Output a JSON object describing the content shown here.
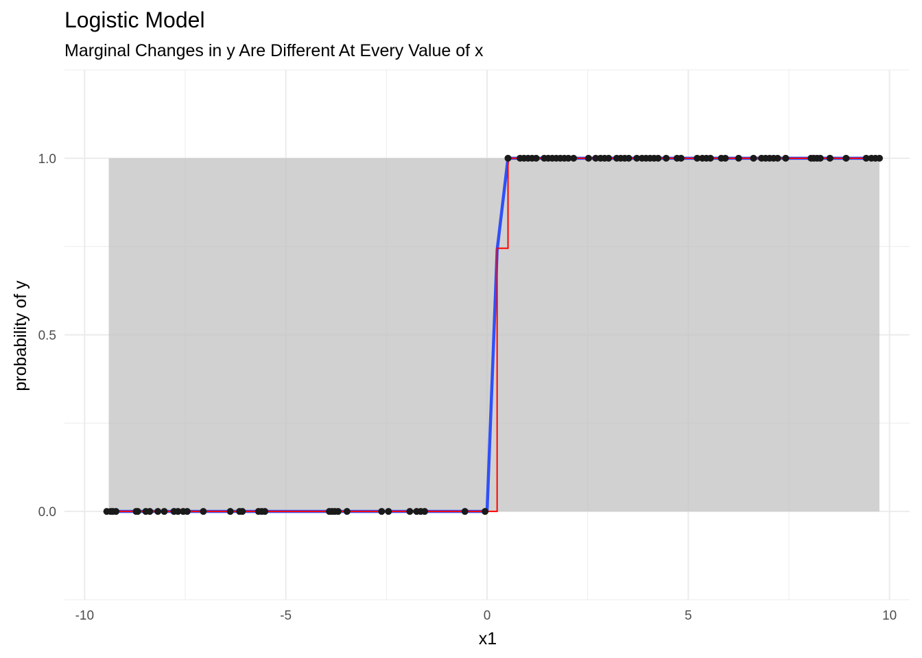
{
  "chart_data": {
    "type": "scatter",
    "title": "Logistic Model",
    "subtitle": "Marginal Changes in y Are Different At Every Value of x",
    "xlabel": "x1",
    "ylabel": "probability of y",
    "xlim": [
      -10.5,
      10.5
    ],
    "ylim": [
      -0.25,
      1.25
    ],
    "x_ticks": [
      -10,
      -5,
      0,
      5,
      10
    ],
    "x_tick_labels": [
      "-10",
      "-5",
      "0",
      "5",
      "10"
    ],
    "y_ticks": [
      0.0,
      0.5,
      1.0
    ],
    "y_tick_labels": [
      "0.0",
      "0.5",
      "1.0"
    ],
    "grid": true,
    "legend": "none",
    "colors": {
      "points": "#1a1a1a",
      "logistic_fit": "#3050f8",
      "step_fit": "#ff0000",
      "band": "#bfbfbf",
      "grid": "#ebebeb"
    },
    "band": {
      "xmin": -9.4,
      "xmax": 9.75,
      "ymin": 0,
      "ymax": 1
    },
    "points": [
      {
        "x": -9.45,
        "y": 0
      },
      {
        "x": -9.35,
        "y": 0
      },
      {
        "x": -9.3,
        "y": 0
      },
      {
        "x": -9.22,
        "y": 0
      },
      {
        "x": -8.72,
        "y": 0
      },
      {
        "x": -8.68,
        "y": 0
      },
      {
        "x": -8.48,
        "y": 0
      },
      {
        "x": -8.38,
        "y": 0
      },
      {
        "x": -8.18,
        "y": 0
      },
      {
        "x": -8.02,
        "y": 0
      },
      {
        "x": -7.78,
        "y": 0
      },
      {
        "x": -7.68,
        "y": 0
      },
      {
        "x": -7.55,
        "y": 0
      },
      {
        "x": -7.45,
        "y": 0
      },
      {
        "x": -7.05,
        "y": 0
      },
      {
        "x": -6.38,
        "y": 0
      },
      {
        "x": -6.15,
        "y": 0
      },
      {
        "x": -6.08,
        "y": 0
      },
      {
        "x": -5.68,
        "y": 0
      },
      {
        "x": -5.6,
        "y": 0
      },
      {
        "x": -5.52,
        "y": 0
      },
      {
        "x": -3.92,
        "y": 0
      },
      {
        "x": -3.85,
        "y": 0
      },
      {
        "x": -3.78,
        "y": 0
      },
      {
        "x": -3.7,
        "y": 0
      },
      {
        "x": -3.48,
        "y": 0
      },
      {
        "x": -2.62,
        "y": 0
      },
      {
        "x": -2.45,
        "y": 0
      },
      {
        "x": -1.92,
        "y": 0
      },
      {
        "x": -1.75,
        "y": 0
      },
      {
        "x": -1.65,
        "y": 0
      },
      {
        "x": -1.55,
        "y": 0
      },
      {
        "x": -0.55,
        "y": 0
      },
      {
        "x": -0.05,
        "y": 0
      },
      {
        "x": 0.52,
        "y": 1
      },
      {
        "x": 0.82,
        "y": 1
      },
      {
        "x": 0.92,
        "y": 1
      },
      {
        "x": 1.02,
        "y": 1
      },
      {
        "x": 1.12,
        "y": 1
      },
      {
        "x": 1.22,
        "y": 1
      },
      {
        "x": 1.42,
        "y": 1
      },
      {
        "x": 1.52,
        "y": 1
      },
      {
        "x": 1.62,
        "y": 1
      },
      {
        "x": 1.72,
        "y": 1
      },
      {
        "x": 1.82,
        "y": 1
      },
      {
        "x": 1.92,
        "y": 1
      },
      {
        "x": 2.02,
        "y": 1
      },
      {
        "x": 2.15,
        "y": 1
      },
      {
        "x": 2.52,
        "y": 1
      },
      {
        "x": 2.7,
        "y": 1
      },
      {
        "x": 2.82,
        "y": 1
      },
      {
        "x": 2.92,
        "y": 1
      },
      {
        "x": 3.02,
        "y": 1
      },
      {
        "x": 3.22,
        "y": 1
      },
      {
        "x": 3.32,
        "y": 1
      },
      {
        "x": 3.42,
        "y": 1
      },
      {
        "x": 3.52,
        "y": 1
      },
      {
        "x": 3.72,
        "y": 1
      },
      {
        "x": 3.85,
        "y": 1
      },
      {
        "x": 3.95,
        "y": 1
      },
      {
        "x": 4.05,
        "y": 1
      },
      {
        "x": 4.15,
        "y": 1
      },
      {
        "x": 4.25,
        "y": 1
      },
      {
        "x": 4.45,
        "y": 1
      },
      {
        "x": 4.72,
        "y": 1
      },
      {
        "x": 4.82,
        "y": 1
      },
      {
        "x": 5.22,
        "y": 1
      },
      {
        "x": 5.35,
        "y": 1
      },
      {
        "x": 5.45,
        "y": 1
      },
      {
        "x": 5.55,
        "y": 1
      },
      {
        "x": 5.82,
        "y": 1
      },
      {
        "x": 5.92,
        "y": 1
      },
      {
        "x": 6.25,
        "y": 1
      },
      {
        "x": 6.62,
        "y": 1
      },
      {
        "x": 6.82,
        "y": 1
      },
      {
        "x": 6.92,
        "y": 1
      },
      {
        "x": 7.02,
        "y": 1
      },
      {
        "x": 7.12,
        "y": 1
      },
      {
        "x": 7.22,
        "y": 1
      },
      {
        "x": 7.42,
        "y": 1
      },
      {
        "x": 8.05,
        "y": 1
      },
      {
        "x": 8.12,
        "y": 1
      },
      {
        "x": 8.2,
        "y": 1
      },
      {
        "x": 8.28,
        "y": 1
      },
      {
        "x": 8.52,
        "y": 1
      },
      {
        "x": 8.92,
        "y": 1
      },
      {
        "x": 9.42,
        "y": 1
      },
      {
        "x": 9.55,
        "y": 1
      },
      {
        "x": 9.65,
        "y": 1
      },
      {
        "x": 9.75,
        "y": 1
      }
    ],
    "logistic_fit": [
      {
        "x": -9.45,
        "y": 0
      },
      {
        "x": 0.0,
        "y": 0
      },
      {
        "x": 0.25,
        "y": 0.74
      },
      {
        "x": 0.52,
        "y": 1
      },
      {
        "x": 9.75,
        "y": 1
      }
    ],
    "step_fit": [
      {
        "x": -9.45,
        "y": 0
      },
      {
        "x": 0.25,
        "y": 0
      },
      {
        "x": 0.25,
        "y": 0.745
      },
      {
        "x": 0.52,
        "y": 0.745
      },
      {
        "x": 0.52,
        "y": 1
      },
      {
        "x": 9.75,
        "y": 1
      }
    ]
  }
}
